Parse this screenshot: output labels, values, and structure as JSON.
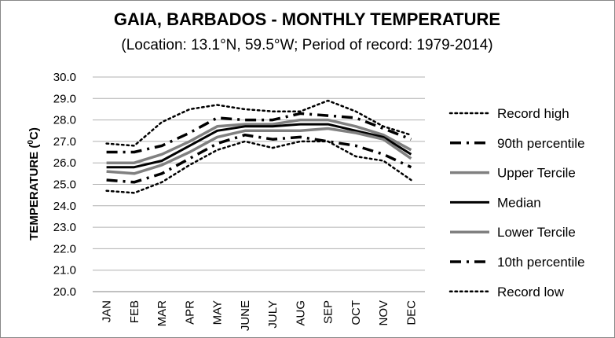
{
  "chart_data": {
    "type": "line",
    "title": "GAIA, BARBADOS - MONTHLY TEMPERATURE",
    "subtitle": "(Location: 13.1°N, 59.5°W; Period of record: 1979-2014)",
    "ylabel_main": "TEMPERATURE (",
    "ylabel_sup": "0",
    "ylabel_end": "C)",
    "xlabel": "",
    "ylim": [
      20.0,
      30.0
    ],
    "yticks": [
      "20.0",
      "21.0",
      "22.0",
      "23.0",
      "24.0",
      "25.0",
      "26.0",
      "27.0",
      "28.0",
      "29.0",
      "30.0"
    ],
    "categories": [
      "JAN",
      "FEB",
      "MAR",
      "APR",
      "MAY",
      "JUNE",
      "JULY",
      "AUG",
      "SEP",
      "OCT",
      "NOV",
      "DEC"
    ],
    "grid": "horizontal",
    "legend_position": "right",
    "series": [
      {
        "name": "Record high",
        "color": "#000000",
        "style": "dotted",
        "values": [
          26.9,
          26.8,
          27.9,
          28.5,
          28.7,
          28.5,
          28.4,
          28.4,
          28.9,
          28.4,
          27.7,
          27.3
        ]
      },
      {
        "name": "90th percentile",
        "color": "#000000",
        "style": "dashdot",
        "values": [
          26.5,
          26.5,
          26.8,
          27.4,
          28.1,
          28.0,
          28.0,
          28.3,
          28.2,
          28.1,
          27.6,
          27.1
        ]
      },
      {
        "name": "Upper Tercile",
        "color": "#808080",
        "style": "solid",
        "values": [
          26.0,
          26.0,
          26.4,
          27.0,
          27.7,
          27.8,
          27.8,
          28.0,
          28.0,
          27.7,
          27.3,
          26.6
        ]
      },
      {
        "name": "Median",
        "color": "#000000",
        "style": "solid",
        "values": [
          25.8,
          25.8,
          26.1,
          26.8,
          27.5,
          27.7,
          27.7,
          27.8,
          27.8,
          27.5,
          27.2,
          26.4
        ]
      },
      {
        "name": "Lower Tercile",
        "color": "#808080",
        "style": "solid",
        "values": [
          25.6,
          25.5,
          25.9,
          26.5,
          27.2,
          27.5,
          27.5,
          27.5,
          27.6,
          27.4,
          27.1,
          26.2
        ]
      },
      {
        "name": "10th percentile",
        "color": "#000000",
        "style": "dashdot",
        "values": [
          25.2,
          25.1,
          25.5,
          26.2,
          26.9,
          27.3,
          27.1,
          27.2,
          27.0,
          26.8,
          26.4,
          25.8
        ]
      },
      {
        "name": "Record low",
        "color": "#000000",
        "style": "dotted",
        "values": [
          24.7,
          24.6,
          25.1,
          25.9,
          26.6,
          27.0,
          26.7,
          27.0,
          27.0,
          26.3,
          26.1,
          25.2
        ]
      }
    ]
  }
}
